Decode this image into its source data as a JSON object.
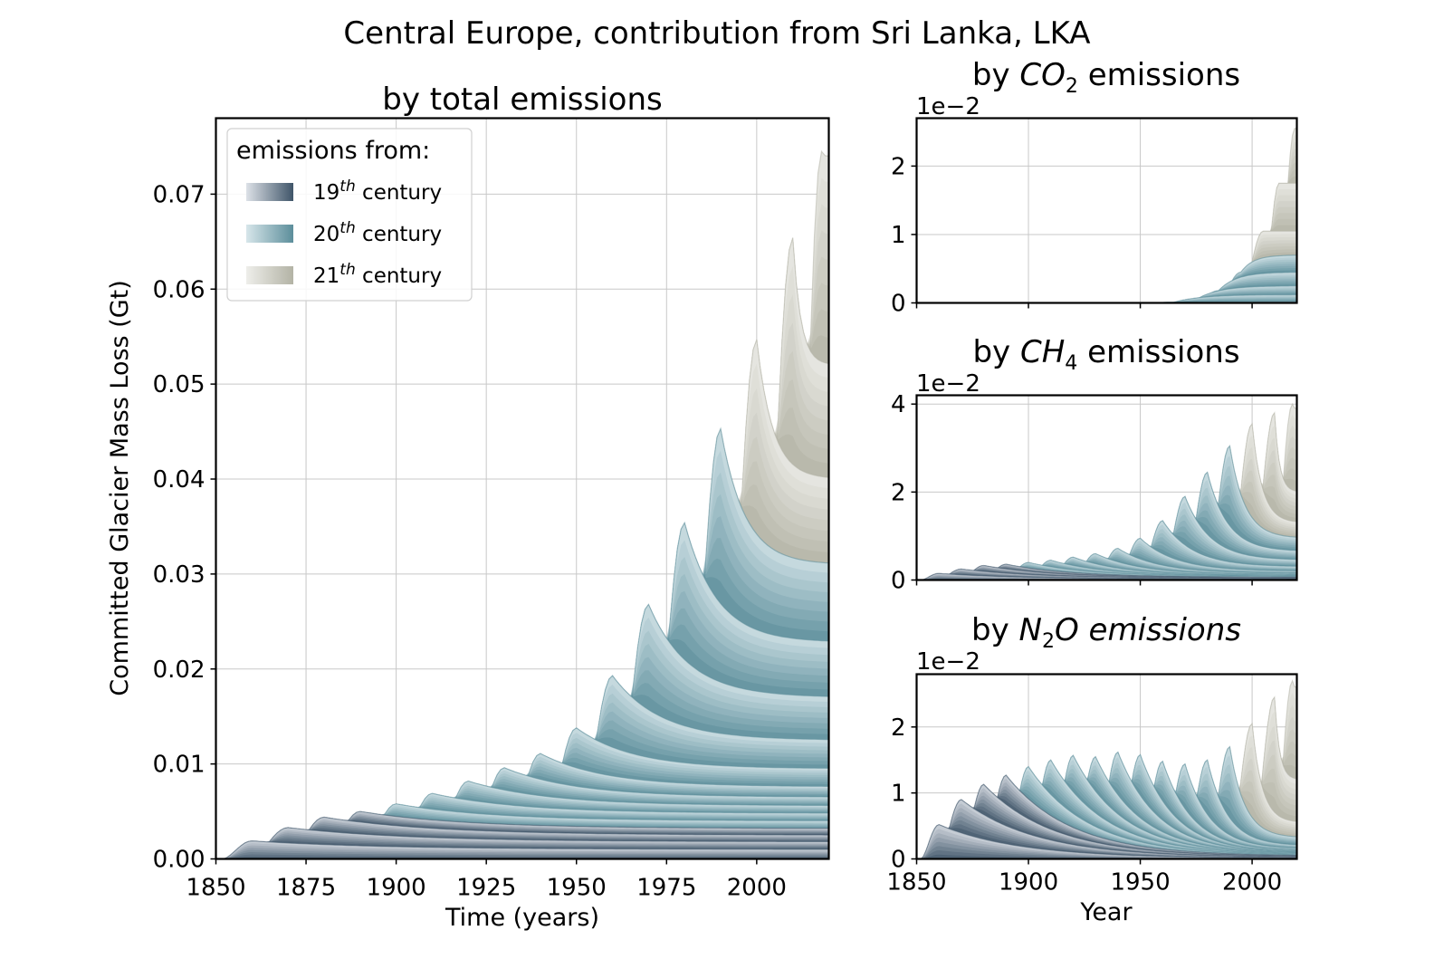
{
  "figure": {
    "suptitle": "Central Europe, contribution from Sri Lanka, LKA"
  },
  "chart_data": [
    {
      "type": "area",
      "id": "total",
      "title": "by total emissions",
      "xlabel": "Time (years)",
      "ylabel": "Committed Glacier Mass Loss (Gt)",
      "xlim": [
        1850,
        2020
      ],
      "ylim": [
        0,
        0.078
      ],
      "xticks": [
        "1850",
        "1875",
        "1900",
        "1925",
        "1950",
        "1975",
        "2000"
      ],
      "yticks": [
        "0.00",
        "0.01",
        "0.02",
        "0.03",
        "0.04",
        "0.05",
        "0.06",
        "0.07"
      ],
      "grid": true,
      "legend": {
        "placement": "upper-left",
        "title": "emissions from:",
        "entries": [
          {
            "base": "19",
            "sup": "th",
            "rest": " century",
            "colors": [
              "#dde1e7",
              "#3f5569"
            ]
          },
          {
            "base": "20",
            "sup": "th",
            "rest": " century",
            "colors": [
              "#d7e6ea",
              "#5c8e9b"
            ]
          },
          {
            "base": "21",
            "sup": "th",
            "rest": " century",
            "colors": [
              "#eeeeea",
              "#b3b3a5"
            ]
          }
        ]
      },
      "series_peaks": [
        {
          "year": 1860,
          "value": 0.0019
        },
        {
          "year": 1870,
          "value": 0.0033
        },
        {
          "year": 1880,
          "value": 0.0044
        },
        {
          "year": 1890,
          "value": 0.005
        },
        {
          "year": 1900,
          "value": 0.0058
        },
        {
          "year": 1910,
          "value": 0.0069
        },
        {
          "year": 1920,
          "value": 0.0082
        },
        {
          "year": 1930,
          "value": 0.0096
        },
        {
          "year": 1940,
          "value": 0.0111
        },
        {
          "year": 1950,
          "value": 0.0138
        },
        {
          "year": 1960,
          "value": 0.0193
        },
        {
          "year": 1970,
          "value": 0.0268
        },
        {
          "year": 1980,
          "value": 0.0354
        },
        {
          "year": 1990,
          "value": 0.0453
        },
        {
          "year": 2000,
          "value": 0.0547
        },
        {
          "year": 2010,
          "value": 0.0654
        },
        {
          "year": 2018,
          "value": 0.0745
        }
      ],
      "end_values_2020": [
        0.001,
        0.0018,
        0.0025,
        0.0032,
        0.004,
        0.0048,
        0.0056,
        0.0065,
        0.0076,
        0.0095,
        0.0125,
        0.017,
        0.0228,
        0.031,
        0.04,
        0.052,
        0.074
      ]
    },
    {
      "type": "area",
      "id": "co2",
      "title_prefix": "by ",
      "title_base": "CO",
      "title_sub": "2",
      "title_suffix": " emissions",
      "scale_label": "1e−2",
      "xlim": [
        1850,
        2020
      ],
      "ylim": [
        0,
        2.7
      ],
      "xticks": [
        "1850",
        "1900",
        "1950",
        "2000"
      ],
      "yticks": [
        "0",
        "1",
        "2"
      ],
      "grid": true,
      "series_peaks": [
        {
          "year": 1955,
          "value": 0.0
        },
        {
          "year": 1965,
          "value": 0.01
        },
        {
          "year": 1975,
          "value": 0.05
        },
        {
          "year": 1985,
          "value": 0.18
        },
        {
          "year": 1995,
          "value": 0.45
        },
        {
          "year": 2005,
          "value": 1.05
        },
        {
          "year": 2012,
          "value": 1.75
        },
        {
          "year": 2019,
          "value": 2.55
        }
      ],
      "end_values_2020": [
        0.02,
        0.12,
        0.25,
        0.45,
        0.7,
        1.05,
        1.75,
        2.55
      ]
    },
    {
      "type": "area",
      "id": "ch4",
      "title_prefix": "by ",
      "title_base": "CH",
      "title_sub": "4",
      "title_suffix": " emissions",
      "scale_label": "1e−2",
      "xlim": [
        1850,
        2020
      ],
      "ylim": [
        0,
        4.2
      ],
      "xticks": [
        "1850",
        "1900",
        "1950",
        "2000"
      ],
      "yticks": [
        "0",
        "2",
        "4"
      ],
      "grid": true,
      "series_peaks": [
        {
          "year": 1860,
          "value": 0.15
        },
        {
          "year": 1870,
          "value": 0.25
        },
        {
          "year": 1880,
          "value": 0.33
        },
        {
          "year": 1890,
          "value": 0.36
        },
        {
          "year": 1900,
          "value": 0.4
        },
        {
          "year": 1910,
          "value": 0.45
        },
        {
          "year": 1920,
          "value": 0.52
        },
        {
          "year": 1930,
          "value": 0.6
        },
        {
          "year": 1940,
          "value": 0.72
        },
        {
          "year": 1950,
          "value": 0.95
        },
        {
          "year": 1960,
          "value": 1.35
        },
        {
          "year": 1970,
          "value": 1.9
        },
        {
          "year": 1980,
          "value": 2.45
        },
        {
          "year": 1990,
          "value": 3.05
        },
        {
          "year": 2000,
          "value": 3.55
        },
        {
          "year": 2010,
          "value": 3.8
        },
        {
          "year": 2018,
          "value": 4.0
        }
      ],
      "end_values_2020": [
        0.02,
        0.04,
        0.05,
        0.06,
        0.08,
        0.09,
        0.1,
        0.12,
        0.15,
        0.2,
        0.3,
        0.45,
        0.65,
        0.95,
        1.3,
        2.0,
        3.9
      ]
    },
    {
      "type": "area",
      "id": "n2o",
      "title_prefix": "by ",
      "title_base": "N",
      "title_sub": "2",
      "title_suffix": "O emissions",
      "scale_label": "1e−2",
      "xlabel": "Year",
      "xlim": [
        1850,
        2020
      ],
      "ylim": [
        0,
        2.8
      ],
      "xticks": [
        "1850",
        "1900",
        "1950",
        "2000"
      ],
      "yticks": [
        "0",
        "1",
        "2"
      ],
      "grid": true,
      "series_peaks": [
        {
          "year": 1860,
          "value": 0.52
        },
        {
          "year": 1870,
          "value": 0.9
        },
        {
          "year": 1880,
          "value": 1.13
        },
        {
          "year": 1890,
          "value": 1.27
        },
        {
          "year": 1900,
          "value": 1.4
        },
        {
          "year": 1910,
          "value": 1.5
        },
        {
          "year": 1920,
          "value": 1.57
        },
        {
          "year": 1930,
          "value": 1.55
        },
        {
          "year": 1940,
          "value": 1.62
        },
        {
          "year": 1950,
          "value": 1.58
        },
        {
          "year": 1960,
          "value": 1.48
        },
        {
          "year": 1970,
          "value": 1.44
        },
        {
          "year": 1980,
          "value": 1.5
        },
        {
          "year": 1990,
          "value": 1.7
        },
        {
          "year": 2000,
          "value": 2.05
        },
        {
          "year": 2010,
          "value": 2.45
        },
        {
          "year": 2018,
          "value": 2.7
        }
      ],
      "end_values_2020": [
        0.01,
        0.02,
        0.03,
        0.04,
        0.05,
        0.06,
        0.07,
        0.08,
        0.09,
        0.1,
        0.12,
        0.15,
        0.2,
        0.32,
        0.55,
        1.2,
        2.6
      ]
    }
  ]
}
